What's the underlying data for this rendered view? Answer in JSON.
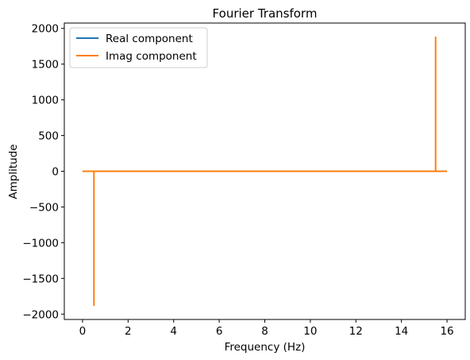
{
  "chart_data": {
    "type": "line",
    "title": "Fourier Transform",
    "xlabel": "Frequency (Hz)",
    "ylabel": "Amplitude",
    "xlim": [
      -0.8,
      16.8
    ],
    "ylim": [
      -2075,
      2075
    ],
    "xticks": [
      0,
      2,
      4,
      6,
      8,
      10,
      12,
      14,
      16
    ],
    "yticks": [
      -2000,
      -1500,
      -1000,
      -500,
      0,
      500,
      1000,
      1500,
      2000
    ],
    "xtick_labels": [
      "0",
      "2",
      "4",
      "6",
      "8",
      "10",
      "12",
      "14",
      "16"
    ],
    "ytick_labels": [
      "−2000",
      "−1500",
      "−1000",
      "−500",
      "0",
      "500",
      "1000",
      "1500",
      "2000"
    ],
    "grid": false,
    "legend": {
      "position": "top-left"
    },
    "series": [
      {
        "name": "Real component",
        "color": "#1f77b4",
        "x": [
          0,
          0.5,
          0.5,
          0.5,
          15.5,
          15.5,
          15.5,
          16
        ],
        "y": [
          0,
          0,
          0,
          0,
          0,
          0,
          0,
          0
        ]
      },
      {
        "name": "Imag component",
        "color": "#ff7f0e",
        "x": [
          0,
          0.5,
          0.5,
          0.5,
          15.5,
          15.5,
          15.5,
          16
        ],
        "y": [
          0,
          0,
          -1885,
          0,
          0,
          1885,
          0,
          0
        ]
      }
    ]
  }
}
